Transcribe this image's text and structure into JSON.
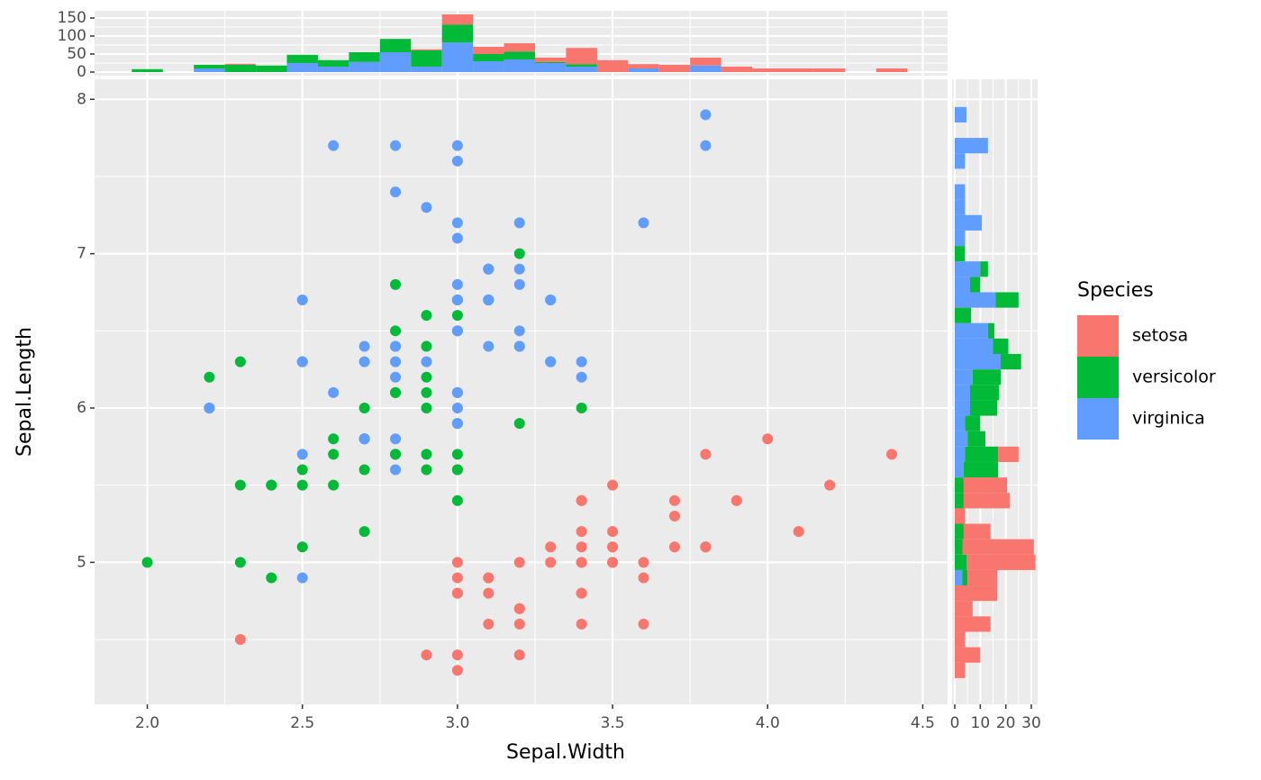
{
  "chart_data": [
    {
      "type": "scatter",
      "x_label": "Sepal.Width",
      "y_label": "Sepal.Length",
      "legend_title": "Species",
      "xlim": [
        1.83,
        4.58
      ],
      "ylim": [
        4.08,
        8.13
      ],
      "xticks": [
        {
          "value": 2,
          "label": "2.0"
        },
        2.5,
        {
          "value": 3,
          "label": "3.0"
        },
        3.5,
        {
          "value": 4,
          "label": "4.0"
        },
        4.5
      ],
      "yticks": [
        5,
        6,
        7,
        8
      ],
      "grid": true,
      "series": [
        {
          "name": "setosa",
          "color": "#F8766D",
          "x": [
            3.5,
            3.0,
            3.2,
            3.1,
            3.6,
            3.9,
            3.4,
            3.4,
            2.9,
            3.1,
            3.7,
            3.4,
            3.0,
            3.0,
            4.0,
            4.4,
            3.9,
            3.5,
            3.8,
            3.8,
            3.4,
            3.7,
            3.6,
            3.3,
            3.4,
            3.0,
            3.4,
            3.5,
            3.4,
            3.2,
            3.1,
            3.4,
            4.1,
            4.2,
            3.1,
            3.2,
            3.5,
            3.6,
            3.0,
            3.4,
            3.5,
            2.3,
            3.2,
            3.5,
            3.8,
            3.0,
            3.8,
            3.2,
            3.7,
            3.3
          ],
          "values": [
            5.1,
            4.9,
            4.7,
            4.6,
            5.0,
            5.4,
            4.6,
            5.0,
            4.4,
            4.9,
            5.4,
            4.8,
            4.8,
            4.3,
            5.8,
            5.7,
            5.4,
            5.1,
            5.7,
            5.1,
            5.4,
            5.1,
            4.6,
            5.1,
            4.8,
            5.0,
            5.0,
            5.2,
            5.2,
            4.7,
            4.8,
            5.4,
            5.2,
            5.5,
            4.9,
            5.0,
            5.5,
            4.9,
            4.4,
            5.1,
            5.0,
            4.5,
            4.4,
            5.0,
            5.1,
            4.8,
            5.1,
            4.6,
            5.3,
            5.0
          ]
        },
        {
          "name": "versicolor",
          "color": "#00BA38",
          "x": [
            3.2,
            3.2,
            3.1,
            2.3,
            2.8,
            2.8,
            3.3,
            2.4,
            2.9,
            2.7,
            2.0,
            3.0,
            2.2,
            2.9,
            2.9,
            3.1,
            3.0,
            2.7,
            2.2,
            2.5,
            3.2,
            2.8,
            2.5,
            2.8,
            2.9,
            3.0,
            2.8,
            3.0,
            2.9,
            2.6,
            2.4,
            2.4,
            2.7,
            2.7,
            3.0,
            3.4,
            3.1,
            2.3,
            3.0,
            2.5,
            2.6,
            3.0,
            2.6,
            2.3,
            2.7,
            3.0,
            2.9,
            2.9,
            2.5,
            2.8
          ],
          "values": [
            7.0,
            6.4,
            6.9,
            5.5,
            6.5,
            5.7,
            6.3,
            4.9,
            6.6,
            5.2,
            5.0,
            5.9,
            6.0,
            6.1,
            5.6,
            6.7,
            5.6,
            5.8,
            6.2,
            5.6,
            5.9,
            6.1,
            6.3,
            6.1,
            6.4,
            6.6,
            6.8,
            6.7,
            6.0,
            5.7,
            5.5,
            5.5,
            5.8,
            6.0,
            5.4,
            6.0,
            6.7,
            6.3,
            5.6,
            5.5,
            5.5,
            6.1,
            5.8,
            5.0,
            5.6,
            5.7,
            5.7,
            6.2,
            5.1,
            5.7
          ]
        },
        {
          "name": "virginica",
          "color": "#619CFF",
          "x": [
            3.3,
            2.7,
            3.0,
            2.9,
            3.0,
            3.0,
            2.5,
            2.9,
            2.5,
            3.6,
            3.2,
            2.7,
            3.0,
            2.5,
            2.8,
            3.2,
            3.0,
            3.8,
            2.6,
            2.2,
            3.2,
            2.8,
            2.8,
            2.7,
            3.3,
            3.2,
            2.8,
            3.0,
            2.8,
            3.0,
            2.8,
            3.8,
            2.8,
            2.8,
            2.6,
            3.0,
            3.4,
            3.1,
            3.0,
            3.1,
            3.1,
            3.1,
            2.7,
            3.2,
            3.3,
            3.0,
            2.5,
            3.0,
            3.4,
            3.0
          ],
          "values": [
            6.3,
            5.8,
            7.1,
            6.3,
            6.5,
            7.6,
            4.9,
            7.3,
            6.7,
            7.2,
            6.5,
            6.4,
            6.8,
            5.7,
            5.8,
            6.4,
            6.5,
            7.7,
            7.7,
            6.0,
            6.9,
            5.6,
            7.7,
            6.3,
            6.7,
            7.2,
            6.2,
            6.1,
            6.4,
            7.2,
            7.4,
            7.9,
            6.4,
            6.3,
            6.1,
            7.7,
            6.3,
            6.4,
            6.0,
            6.9,
            6.7,
            6.9,
            5.8,
            6.8,
            6.7,
            6.7,
            6.3,
            6.5,
            6.2,
            5.9
          ]
        }
      ]
    },
    {
      "type": "histogram",
      "orientation": "vertical",
      "xlim": [
        1.83,
        4.58
      ],
      "ylim": [
        -10,
        170
      ],
      "yticks": [
        0,
        50,
        100,
        150
      ],
      "grid": true,
      "bins": [
        1.95,
        2.05,
        2.15,
        2.25,
        2.35,
        2.45,
        2.55,
        2.65,
        2.75,
        2.85,
        2.95,
        3.05,
        3.15,
        3.25,
        3.35,
        3.45,
        3.55,
        3.65,
        3.75,
        3.85,
        3.95,
        4.05,
        4.15,
        4.25,
        4.35,
        4.45
      ],
      "series": [
        {
          "name": "setosa",
          "color": "#F8766D",
          "values": [
            0,
            0,
            0,
            3,
            0,
            0,
            0,
            0,
            0,
            3,
            28,
            20,
            23,
            12,
            45,
            33,
            12,
            20,
            22,
            15,
            10,
            10,
            10,
            0,
            10
          ]
        },
        {
          "name": "versicolor",
          "color": "#00BA38",
          "values": [
            8,
            0,
            10,
            20,
            18,
            23,
            18,
            27,
            37,
            45,
            50,
            20,
            22,
            3,
            7,
            0,
            0,
            0,
            0,
            0,
            0,
            0,
            0,
            0,
            0
          ]
        },
        {
          "name": "virginica",
          "color": "#619CFF",
          "values": [
            0,
            0,
            10,
            0,
            0,
            25,
            15,
            28,
            55,
            15,
            82,
            30,
            35,
            25,
            15,
            0,
            10,
            0,
            18,
            0,
            0,
            0,
            0,
            0,
            0
          ]
        }
      ]
    },
    {
      "type": "histogram",
      "orientation": "horizontal",
      "xlim": [
        -1.06,
        32.47
      ],
      "ylim": [
        4.08,
        8.13
      ],
      "xticks": [
        0,
        10,
        20,
        30
      ],
      "grid": true,
      "bins": [
        4.25,
        4.35,
        4.45,
        4.55,
        4.65,
        4.75,
        4.85,
        4.95,
        5.05,
        5.15,
        5.25,
        5.35,
        5.45,
        5.55,
        5.65,
        5.75,
        5.85,
        5.95,
        6.05,
        6.15,
        6.25,
        6.35,
        6.45,
        6.55,
        6.65,
        6.75,
        6.85,
        6.95,
        7.05,
        7.15,
        7.25,
        7.35,
        7.45,
        7.55,
        7.65,
        7.75,
        7.85,
        7.95
      ],
      "series": [
        {
          "name": "setosa",
          "color": "#F8766D",
          "values": [
            4,
            10,
            4,
            14,
            7,
            16.6,
            11.6,
            27,
            28,
            10.5,
            4,
            18,
            17,
            0,
            8,
            0,
            0,
            0,
            0,
            0,
            0,
            0,
            0,
            0,
            0,
            0,
            0,
            0,
            0,
            0,
            0,
            0,
            0,
            0,
            0,
            0,
            0
          ]
        },
        {
          "name": "versicolor",
          "color": "#00BA38",
          "values": [
            0,
            0,
            0,
            0,
            0,
            0,
            2,
            4.6,
            3,
            3.5,
            0,
            3.5,
            3.5,
            13.5,
            13,
            7,
            6,
            10.6,
            11.4,
            11,
            8,
            6,
            2.5,
            6.4,
            9,
            4,
            3,
            4,
            0,
            0,
            0,
            0,
            0,
            0,
            0,
            0,
            0
          ]
        },
        {
          "name": "virginica",
          "color": "#619CFF",
          "values": [
            0,
            0,
            0,
            0,
            0,
            0,
            3,
            0,
            0,
            0,
            0,
            0,
            0,
            3.5,
            4,
            5,
            4,
            6,
            6,
            7,
            18,
            15,
            13,
            0,
            16,
            6,
            10,
            0,
            4,
            10.6,
            4,
            4,
            0,
            4,
            13,
            0,
            4.6
          ]
        }
      ]
    }
  ]
}
